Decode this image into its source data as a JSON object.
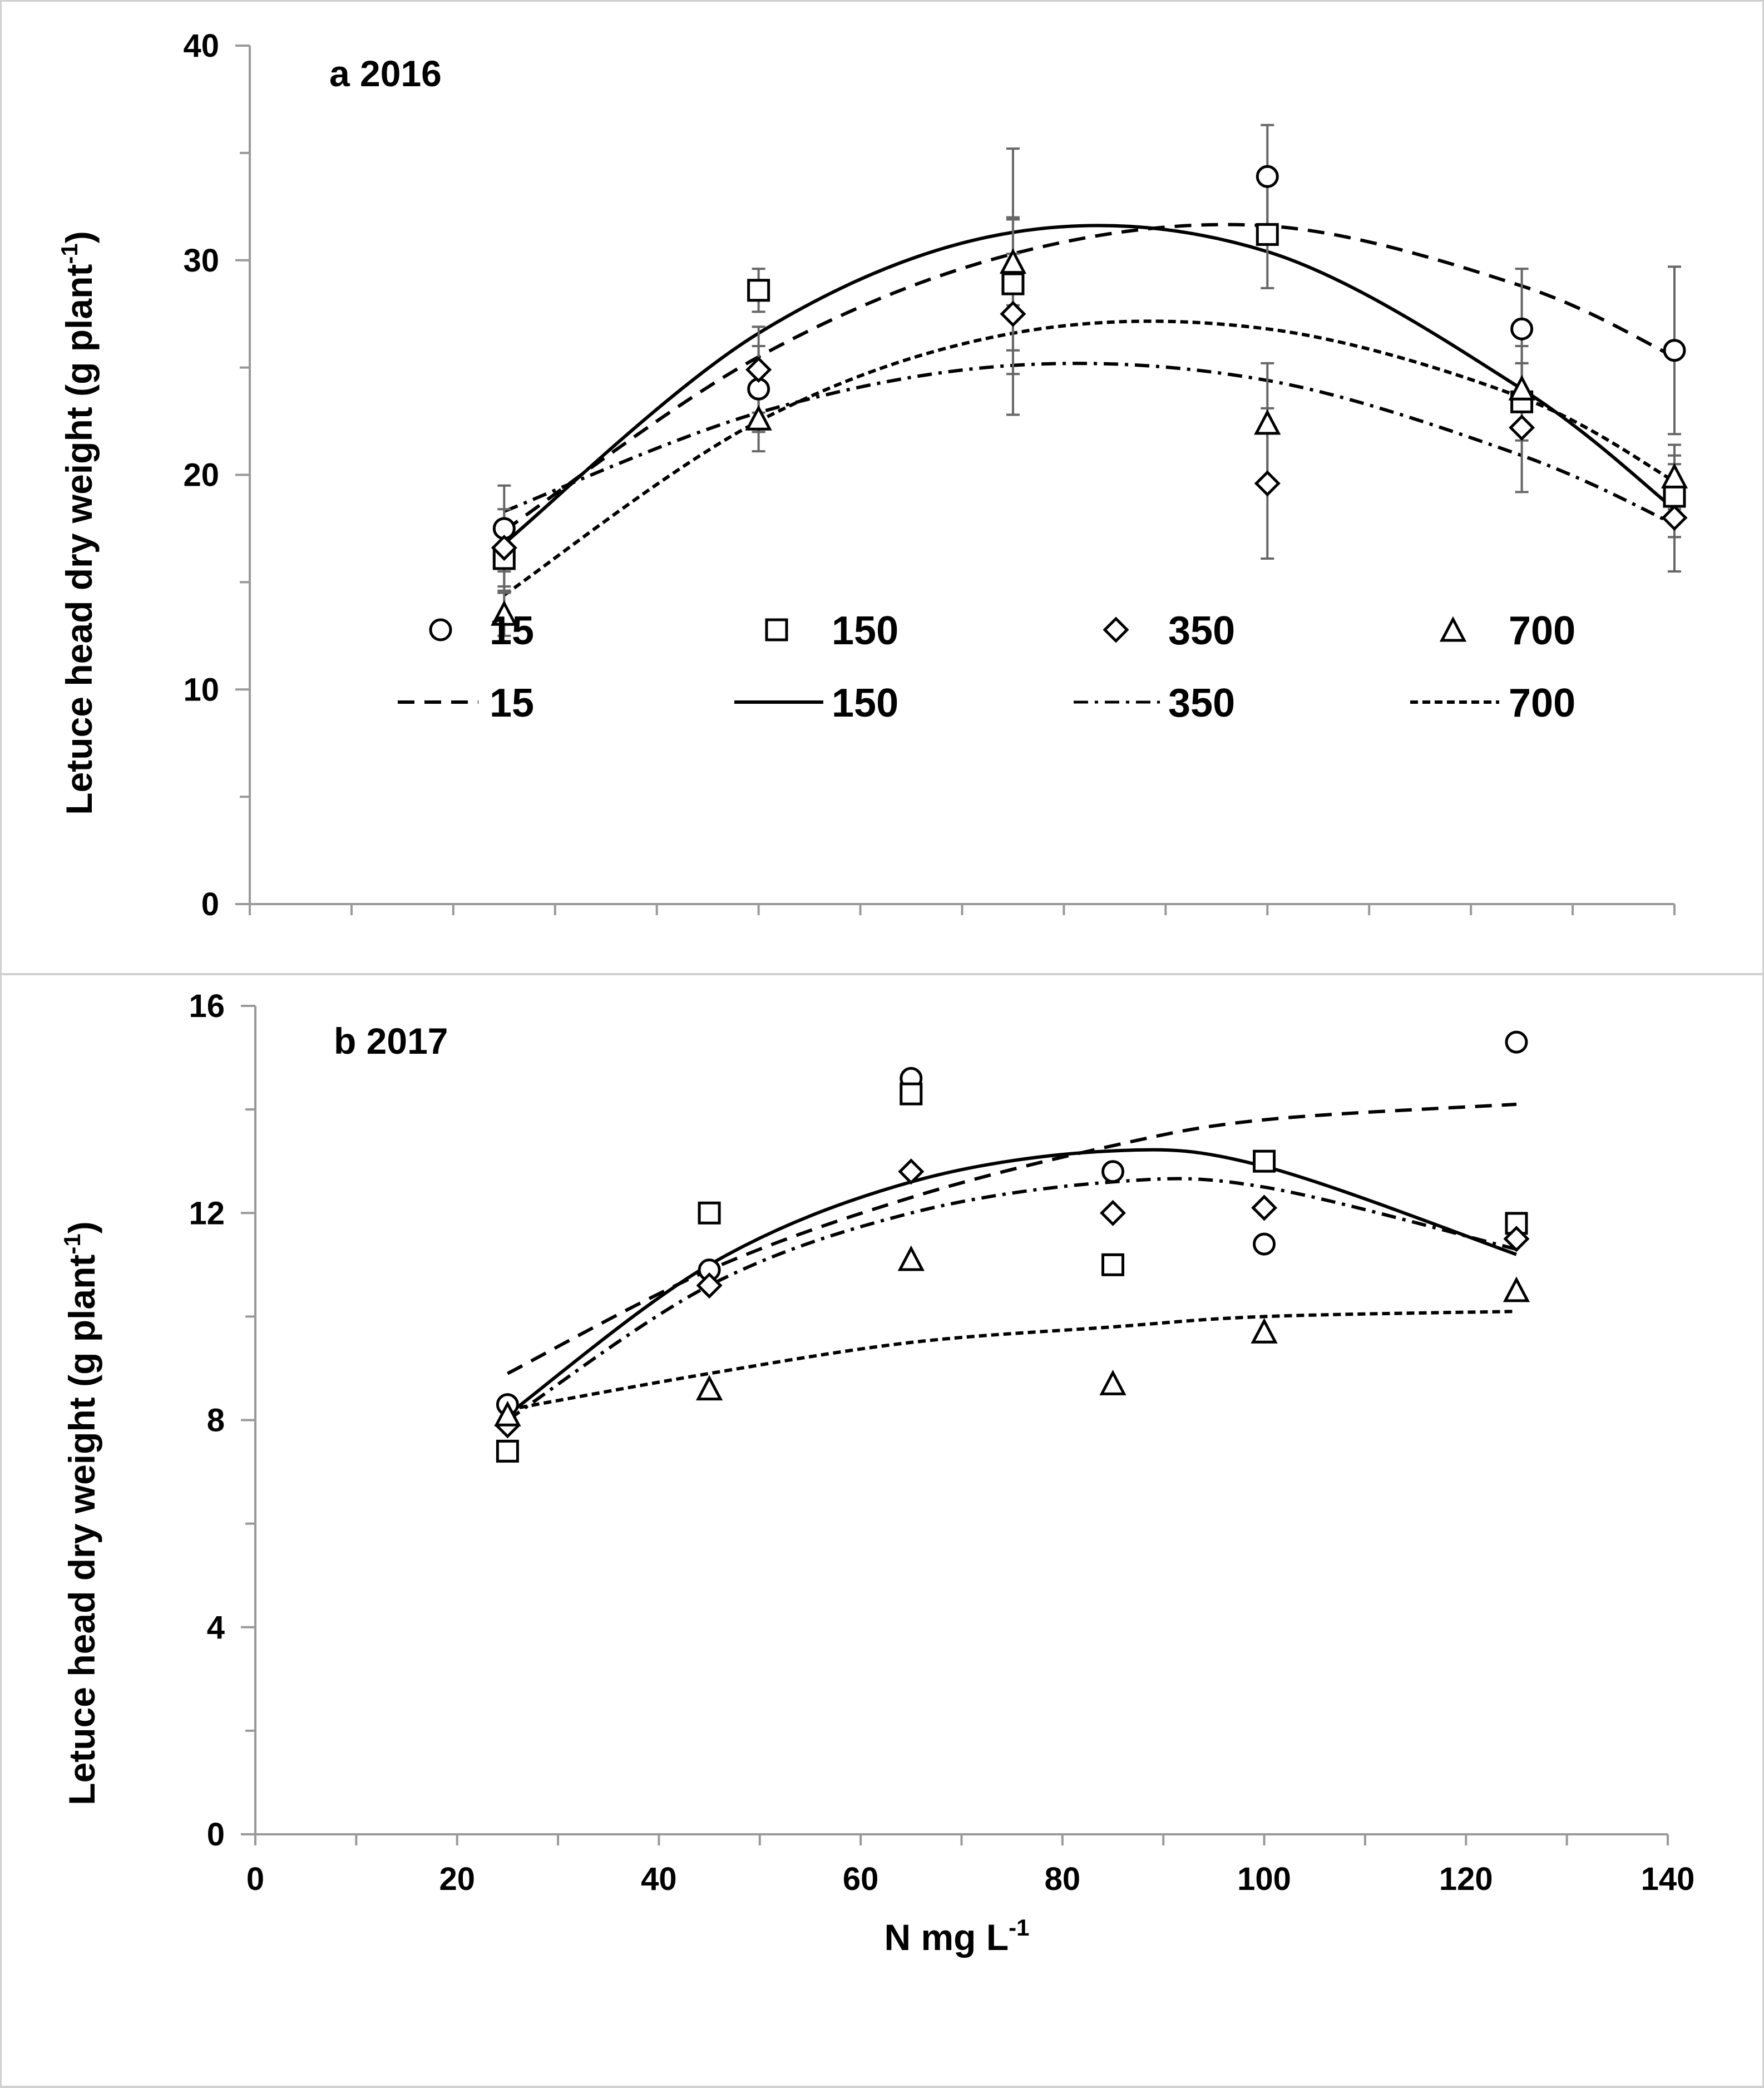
{
  "chart_data": [
    {
      "type": "scatter",
      "title": "a 2016",
      "ylabel_main": "Letuce head dry weight (g plant",
      "ylabel_sup": "-1",
      "ylabel_end": ")",
      "ylim": [
        0,
        40
      ],
      "yticks": [
        "0",
        "10",
        "20",
        "30",
        "40"
      ],
      "xlim": [
        0,
        140
      ],
      "x": [
        25,
        50,
        75,
        100,
        125,
        140
      ],
      "series": [
        {
          "name": "15",
          "marker": "circle",
          "line": "dash",
          "values": [
            17.5,
            24.0,
            29.0,
            33.9,
            26.8,
            25.8
          ],
          "errors": [
            2.0,
            2.0,
            6.2,
            2.4,
            2.8,
            3.9
          ],
          "fit": [
            17.4,
            25.5,
            30.3,
            31.6,
            28.8,
            25.5
          ]
        },
        {
          "name": "150",
          "marker": "square",
          "line": "solid",
          "values": [
            16.1,
            28.6,
            28.9,
            31.2,
            23.4,
            19.0
          ],
          "errors": [
            1.5,
            1.0,
            3.1,
            2.5,
            1.8,
            1.9
          ],
          "fit": [
            16.8,
            26.6,
            31.3,
            30.4,
            24.0,
            18.4
          ]
        },
        {
          "name": "350",
          "marker": "diamond",
          "line": "dashdot",
          "values": [
            16.6,
            24.9,
            27.5,
            19.6,
            22.2,
            18.0
          ],
          "errors": [
            1.8,
            2.0,
            2.8,
            3.5,
            3.0,
            2.5
          ],
          "fit": [
            18.3,
            22.9,
            25.1,
            24.4,
            20.9,
            17.7
          ]
        },
        {
          "name": "700",
          "marker": "triangle",
          "line": "dot",
          "values": [
            13.5,
            22.6,
            29.9,
            22.4,
            24.0,
            19.9
          ],
          "errors": [
            1.0,
            1.5,
            2.0,
            2.8,
            2.0,
            1.5
          ],
          "fit": [
            14.4,
            22.5,
            26.6,
            26.8,
            23.6,
            19.7
          ]
        }
      ]
    },
    {
      "type": "scatter",
      "title": "b 2017",
      "ylabel_main": "Letuce head dry weight (g plant",
      "ylabel_sup": "-1",
      "ylabel_end": ")",
      "xlabel_main": "N mg L",
      "xlabel_sup": "-1",
      "ylim": [
        0,
        16
      ],
      "yticks": [
        "0",
        "4",
        "8",
        "12",
        "16"
      ],
      "xlim": [
        0,
        140
      ],
      "xticks": [
        "0",
        "20",
        "40",
        "60",
        "80",
        "100",
        "120",
        "140"
      ],
      "x": [
        25,
        45,
        65,
        85,
        100,
        125
      ],
      "series": [
        {
          "name": "15",
          "marker": "circle",
          "line": "dash",
          "values": [
            8.3,
            10.9,
            14.6,
            12.8,
            11.4,
            15.3
          ],
          "fit": [
            8.9,
            10.9,
            12.3,
            13.3,
            13.8,
            14.1
          ]
        },
        {
          "name": "150",
          "marker": "square",
          "line": "solid",
          "values": [
            7.4,
            12.0,
            14.3,
            11.0,
            13.0,
            11.8
          ],
          "fit": [
            8.1,
            11.0,
            12.6,
            13.2,
            12.9,
            11.2
          ]
        },
        {
          "name": "350",
          "marker": "diamond",
          "line": "dashdot",
          "values": [
            7.9,
            10.6,
            12.8,
            12.0,
            12.1,
            11.5
          ],
          "fit": [
            8.0,
            10.6,
            12.0,
            12.6,
            12.5,
            11.3
          ]
        },
        {
          "name": "700",
          "marker": "triangle",
          "line": "dot",
          "values": [
            8.1,
            8.6,
            11.1,
            8.7,
            9.7,
            10.5
          ],
          "fit": [
            8.2,
            8.9,
            9.5,
            9.8,
            10.0,
            10.1
          ]
        }
      ]
    }
  ],
  "legend": {
    "placement": "inside-bottom of panel a",
    "marker_labels": [
      "15",
      "150",
      "350",
      "700"
    ],
    "line_labels": [
      "15",
      "150",
      "350",
      "700"
    ]
  }
}
